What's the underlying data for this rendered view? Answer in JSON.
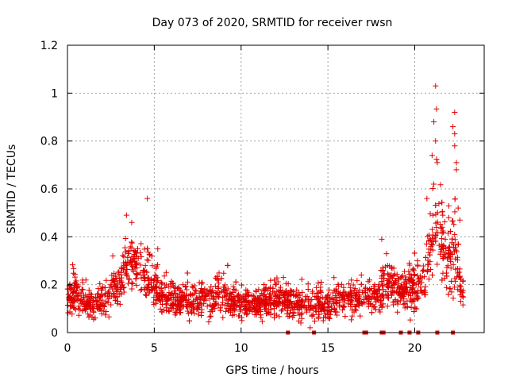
{
  "chart_data": {
    "type": "scatter",
    "title": "Day 073 of 2020, SRMTID for receiver rwsn",
    "xlabel": "GPS time / hours",
    "ylabel": "SRMTID / TECUs",
    "xlim": [
      0,
      24
    ],
    "ylim": [
      0,
      1.2
    ],
    "xticks": [
      0,
      5,
      10,
      15,
      20
    ],
    "xtick_labels": [
      "0",
      "5",
      "10",
      "15",
      "20"
    ],
    "yticks": [
      0,
      0.2,
      0.4,
      0.6,
      0.8,
      1.0,
      1.2
    ],
    "ytick_labels": [
      "0",
      "0.2",
      "0.4",
      "0.6",
      "0.8",
      "1",
      "1.2"
    ],
    "grid": true,
    "marker": "+",
    "color": "#e00000",
    "series": [
      {
        "name": "SRMTID",
        "profile_x": [
          0,
          0.5,
          1.0,
          1.5,
          2.0,
          2.5,
          3.0,
          3.3,
          3.6,
          4.0,
          4.5,
          5.0,
          5.5,
          6.0,
          7.0,
          8.0,
          9.0,
          10.0,
          11.0,
          12.0,
          13.0,
          14.0,
          15.0,
          16.0,
          17.0,
          17.5,
          18.0,
          18.3,
          19.0,
          19.5,
          20.0,
          20.5,
          21.0,
          21.3,
          21.5,
          22.0,
          22.3,
          22.6,
          22.8
        ],
        "profile_mean": [
          0.15,
          0.17,
          0.13,
          0.11,
          0.13,
          0.17,
          0.2,
          0.26,
          0.32,
          0.27,
          0.26,
          0.2,
          0.15,
          0.14,
          0.13,
          0.14,
          0.15,
          0.12,
          0.12,
          0.14,
          0.13,
          0.12,
          0.12,
          0.14,
          0.14,
          0.16,
          0.16,
          0.22,
          0.17,
          0.17,
          0.18,
          0.25,
          0.38,
          0.45,
          0.4,
          0.3,
          0.32,
          0.22,
          0.15
        ],
        "profile_spread": [
          0.06,
          0.08,
          0.06,
          0.05,
          0.06,
          0.07,
          0.08,
          0.12,
          0.1,
          0.1,
          0.12,
          0.08,
          0.06,
          0.06,
          0.06,
          0.06,
          0.07,
          0.06,
          0.06,
          0.06,
          0.06,
          0.06,
          0.06,
          0.06,
          0.06,
          0.07,
          0.07,
          0.09,
          0.07,
          0.08,
          0.09,
          0.12,
          0.16,
          0.22,
          0.18,
          0.14,
          0.2,
          0.1,
          0.07
        ],
        "notable_points": [
          {
            "x": 3.4,
            "y": 0.49
          },
          {
            "x": 3.7,
            "y": 0.46
          },
          {
            "x": 4.6,
            "y": 0.56
          },
          {
            "x": 18.1,
            "y": 0.39
          },
          {
            "x": 20.7,
            "y": 0.56
          },
          {
            "x": 21.2,
            "y": 1.03
          },
          {
            "x": 21.1,
            "y": 0.88
          },
          {
            "x": 21.2,
            "y": 0.8
          },
          {
            "x": 21.0,
            "y": 0.74
          },
          {
            "x": 21.3,
            "y": 0.71
          },
          {
            "x": 21.1,
            "y": 0.62
          },
          {
            "x": 22.3,
            "y": 0.92
          },
          {
            "x": 22.2,
            "y": 0.86
          },
          {
            "x": 22.3,
            "y": 0.83
          },
          {
            "x": 22.3,
            "y": 0.78
          },
          {
            "x": 22.4,
            "y": 0.71
          },
          {
            "x": 22.4,
            "y": 0.68
          },
          {
            "x": 22.5,
            "y": 0.52
          },
          {
            "x": 22.6,
            "y": 0.47
          }
        ]
      }
    ],
    "zero_markers_x": [
      12.7,
      14.2,
      17.1,
      17.2,
      18.1,
      18.2,
      19.2,
      19.7,
      20.2,
      21.3,
      22.2
    ]
  }
}
